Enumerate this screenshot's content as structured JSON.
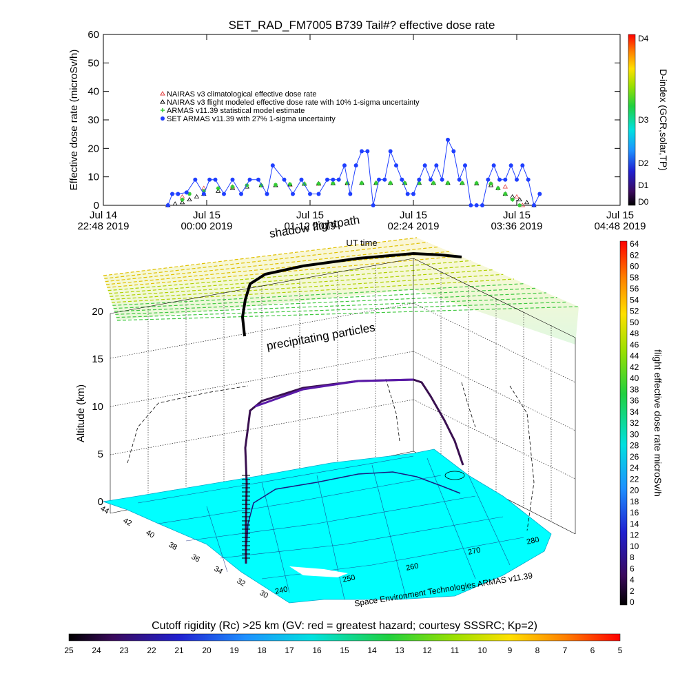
{
  "chart_data": [
    {
      "type": "scatter",
      "title": "SET_RAD_FM7005   B739 Tail#? effective dose rate",
      "ylabel": "Effective dose rate (microSv/h)",
      "ylim": [
        0,
        60
      ],
      "yticks": [
        0,
        10,
        20,
        30,
        40,
        50,
        60
      ],
      "xlabel": "UT time",
      "xticks": [
        {
          "top": "Jul 14",
          "bottom": "22:48 2019"
        },
        {
          "top": "Jul 15",
          "bottom": "00:00 2019"
        },
        {
          "top": "Jul 15",
          "bottom": "01:12 2019"
        },
        {
          "top": "Jul 15",
          "bottom": "02:24 2019"
        },
        {
          "top": "Jul 15",
          "bottom": "03:36 2019"
        },
        {
          "top": "Jul 15",
          "bottom": "04:48 2019"
        }
      ],
      "xlim_minutes": [
        0,
        360
      ],
      "legend_position": "upper-left",
      "series": [
        {
          "name": "NAIRAS v3 climatological effective dose rate",
          "color": "#e04040",
          "marker": "triangle",
          "x_minutes": [
            45,
            55,
            70,
            90,
            110,
            130,
            150,
            170,
            190,
            210,
            230,
            250,
            270,
            280,
            288,
            292
          ],
          "values": [
            0,
            3,
            6,
            6.5,
            7,
            7.2,
            7.5,
            7.7,
            7.8,
            7.8,
            7.8,
            7.8,
            7.6,
            6.5,
            3,
            0
          ]
        },
        {
          "name": "NAIRAS v3 flight modeled effective dose rate with 10% 1-sigma uncertainty",
          "color": "#000000",
          "marker": "triangle",
          "x_minutes": [
            45,
            50,
            55,
            60,
            65,
            70,
            80,
            90,
            100,
            110,
            120,
            130,
            140,
            150,
            160,
            170,
            180,
            190,
            200,
            210,
            220,
            230,
            240,
            250,
            260,
            270,
            275,
            280,
            285,
            290,
            295,
            300
          ],
          "values": [
            0,
            0.5,
            1,
            2,
            3,
            4,
            5,
            6,
            6.5,
            7,
            7,
            7.3,
            7.5,
            7.6,
            7.7,
            7.8,
            7.8,
            7.8,
            7.8,
            7.8,
            7.8,
            7.8,
            7.8,
            7.8,
            7.6,
            7,
            6,
            4,
            3,
            2,
            1,
            0
          ]
        },
        {
          "name": "ARMAS v11.39 statistical model estimate",
          "color": "#33cc33",
          "marker": "asterisk",
          "x_minutes": [
            55,
            60,
            70,
            80,
            90,
            100,
            110,
            120,
            130,
            140,
            150,
            160,
            170,
            180,
            190,
            200,
            210,
            220,
            230,
            240,
            250,
            260,
            270,
            275,
            280,
            285,
            290
          ],
          "values": [
            2,
            4,
            5,
            6,
            6.5,
            7,
            7,
            7.2,
            7.4,
            7.5,
            7.6,
            7.7,
            7.8,
            7.8,
            7.8,
            7.8,
            7.8,
            7.8,
            7.8,
            7.8,
            7.8,
            7.8,
            7.6,
            6,
            4,
            2,
            0
          ]
        },
        {
          "name": "SET ARMAS v11.39 with 27% 1-sigma uncertainty",
          "color": "#1f3fff",
          "marker": "circle",
          "x_minutes": [
            45,
            48,
            52,
            58,
            64,
            70,
            74,
            78,
            84,
            90,
            96,
            102,
            108,
            114,
            118,
            126,
            132,
            138,
            144,
            150,
            156,
            160,
            164,
            168,
            172,
            176,
            180,
            184,
            188,
            192,
            196,
            200,
            204,
            208,
            212,
            216,
            220,
            224,
            228,
            232,
            236,
            240,
            244,
            248,
            252,
            256,
            260,
            264,
            268,
            272,
            276,
            280,
            284,
            288,
            292,
            296,
            300,
            304
          ],
          "values": [
            0,
            4,
            4,
            4.5,
            9,
            4,
            9,
            9,
            4,
            9,
            4,
            9,
            9,
            4,
            14,
            9,
            4,
            9,
            4,
            4,
            9,
            9,
            9,
            14,
            4,
            14,
            19,
            19,
            0,
            9,
            9,
            19,
            14,
            9,
            4,
            4,
            9,
            14,
            9,
            14,
            9,
            23,
            19,
            9,
            14,
            0,
            0,
            0,
            9,
            14,
            9,
            9,
            14,
            9,
            14,
            9,
            0,
            4
          ]
        }
      ],
      "colorbar": {
        "label": "D-index (GCR,solar,TP)",
        "ticks": [
          "D0",
          "D1",
          "D2",
          "D3",
          "D4"
        ]
      }
    },
    {
      "type": "scatter",
      "subtype": "3d-trajectory",
      "zlabel": "Altitude (km)",
      "zticks": [
        0,
        5,
        10,
        15,
        20
      ],
      "lat_ticks": [
        30,
        32,
        34,
        36,
        38,
        40,
        42,
        44
      ],
      "lon_ticks": [
        240,
        250,
        260,
        270,
        280
      ],
      "annotations": [
        "shadow flightpath",
        "UT time",
        "precipitating particles",
        "Space Environment Technologies ARMAS v11.39"
      ],
      "colorbar": {
        "label": "flight effective dose rate microSv/h",
        "ticks": [
          0,
          2,
          4,
          6,
          8,
          10,
          12,
          14,
          16,
          18,
          20,
          22,
          24,
          26,
          28,
          30,
          32,
          34,
          36,
          38,
          40,
          42,
          44,
          46,
          48,
          50,
          52,
          54,
          56,
          58,
          60,
          62,
          64
        ]
      }
    },
    {
      "type": "heatmap",
      "label": "Cutoff rigidity (Rc) >25 km (GV: red = greatest hazard; courtesy SSSRC; Kp=2)",
      "ticks": [
        25,
        24,
        23,
        22,
        21,
        20,
        19,
        18,
        17,
        16,
        15,
        14,
        13,
        12,
        11,
        10,
        9,
        8,
        7,
        6,
        5
      ]
    }
  ]
}
